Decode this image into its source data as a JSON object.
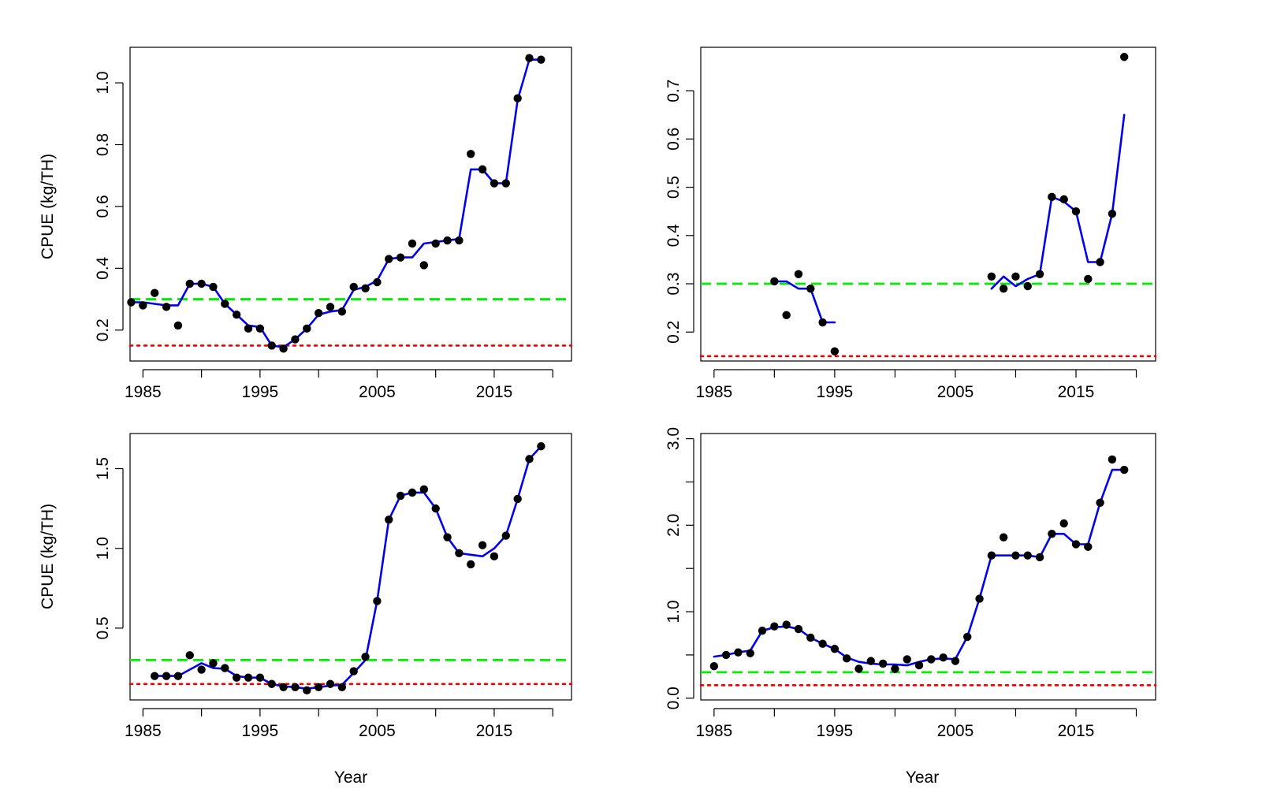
{
  "figure": {
    "ylabel_left_top": "CPUE (kg/TH)",
    "ylabel_left_bottom": "CPUE (kg/TH)",
    "xlabel_bottom_left": "Year",
    "xlabel_bottom_right": "Year"
  },
  "colors": {
    "fit_line": "#0000ee",
    "points": "#000000",
    "upper_reference": "#00ee00",
    "lower_reference": "#ee0000"
  },
  "chart_data": [
    {
      "type": "line",
      "panel": "top-left",
      "xlabel": "",
      "ylabel": "CPUE (kg/TH)",
      "xlim": [
        1983.9,
        2021.6
      ],
      "ylim": [
        0.1,
        1.115
      ],
      "x_ticks": [
        1985,
        1990,
        1995,
        2000,
        2005,
        2010,
        2015,
        2020
      ],
      "x_tick_labels": [
        "1985",
        "",
        "1995",
        "",
        "2005",
        "",
        "2015",
        ""
      ],
      "y_ticks": [
        0.2,
        0.4,
        0.6,
        0.8,
        1.0
      ],
      "y_tick_labels": [
        "0.2",
        "0.4",
        "0.6",
        "0.8",
        "1.0"
      ],
      "reference_lines": [
        {
          "y": 0.3,
          "style": "dashed",
          "color": "green"
        },
        {
          "y": 0.15,
          "style": "dotted",
          "color": "red"
        }
      ],
      "points": {
        "x": [
          1984,
          1985,
          1986,
          1987,
          1988,
          1989,
          1990,
          1991,
          1992,
          1993,
          1994,
          1995,
          1996,
          1997,
          1998,
          1999,
          2000,
          2001,
          2002,
          2003,
          2004,
          2005,
          2006,
          2007,
          2008,
          2009,
          2010,
          2011,
          2012,
          2013,
          2014,
          2015,
          2016,
          2017,
          2018,
          2019
        ],
        "y": [
          0.29,
          0.28,
          0.32,
          0.275,
          0.215,
          0.35,
          0.35,
          0.34,
          0.285,
          0.25,
          0.205,
          0.205,
          0.15,
          0.14,
          0.17,
          0.205,
          0.255,
          0.275,
          0.26,
          0.34,
          0.335,
          0.355,
          0.43,
          0.435,
          0.48,
          0.41,
          0.48,
          0.49,
          0.49,
          0.77,
          0.72,
          0.675,
          0.675,
          0.95,
          1.08,
          1.075
        ]
      },
      "fit": {
        "x": [
          1984,
          1985,
          1986,
          1987,
          1988,
          1989,
          1990,
          1991,
          1992,
          1993,
          1994,
          1995,
          1996,
          1997,
          1998,
          1999,
          2000,
          2001,
          2002,
          2003,
          2004,
          2005,
          2006,
          2007,
          2008,
          2009,
          2010,
          2011,
          2012,
          2013,
          2014,
          2015,
          2016,
          2017,
          2018,
          2019
        ],
        "y": [
          0.29,
          0.29,
          0.285,
          0.28,
          0.28,
          0.35,
          0.35,
          0.34,
          0.285,
          0.25,
          0.215,
          0.21,
          0.15,
          0.145,
          0.17,
          0.205,
          0.25,
          0.26,
          0.265,
          0.33,
          0.34,
          0.36,
          0.43,
          0.435,
          0.435,
          0.48,
          0.485,
          0.49,
          0.495,
          0.72,
          0.72,
          0.675,
          0.675,
          0.945,
          1.075,
          1.075
        ]
      }
    },
    {
      "type": "line",
      "panel": "top-right",
      "xlabel": "",
      "ylabel": "",
      "xlim": [
        1983.9,
        2021.6
      ],
      "ylim": [
        0.14,
        0.79
      ],
      "x_ticks": [
        1985,
        1990,
        1995,
        2000,
        2005,
        2010,
        2015,
        2020
      ],
      "x_tick_labels": [
        "1985",
        "",
        "1995",
        "",
        "2005",
        "",
        "2015",
        ""
      ],
      "y_ticks": [
        0.2,
        0.3,
        0.4,
        0.5,
        0.6,
        0.7
      ],
      "y_tick_labels": [
        "0.2",
        "0.3",
        "0.4",
        "0.5",
        "0.6",
        "0.7"
      ],
      "reference_lines": [
        {
          "y": 0.3,
          "style": "dashed",
          "color": "green"
        },
        {
          "y": 0.15,
          "style": "dotted",
          "color": "red"
        }
      ],
      "points": {
        "x": [
          1990,
          1991,
          1992,
          1993,
          1994,
          1995,
          2008,
          2009,
          2010,
          2011,
          2012,
          2013,
          2014,
          2015,
          2016,
          2017,
          2018,
          2019
        ],
        "y": [
          0.305,
          0.235,
          0.32,
          0.29,
          0.22,
          0.16,
          0.315,
          0.29,
          0.315,
          0.295,
          0.32,
          0.48,
          0.475,
          0.45,
          0.31,
          0.345,
          0.445,
          0.77
        ]
      },
      "fit_segments": [
        {
          "x": [
            1990,
            1991,
            1992,
            1993,
            1994,
            1995
          ],
          "y": [
            0.305,
            0.305,
            0.29,
            0.29,
            0.22,
            0.22
          ]
        },
        {
          "x": [
            2008,
            2009,
            2010,
            2011,
            2012,
            2013,
            2014,
            2015,
            2016,
            2017,
            2018,
            2019
          ],
          "y": [
            0.29,
            0.315,
            0.295,
            0.31,
            0.32,
            0.48,
            0.47,
            0.45,
            0.345,
            0.345,
            0.445,
            0.65
          ]
        }
      ]
    },
    {
      "type": "line",
      "panel": "bottom-left",
      "xlabel": "Year",
      "ylabel": "CPUE (kg/TH)",
      "xlim": [
        1983.9,
        2021.6
      ],
      "ylim": [
        0.05,
        1.72
      ],
      "x_ticks": [
        1985,
        1990,
        1995,
        2000,
        2005,
        2010,
        2015,
        2020
      ],
      "x_tick_labels": [
        "1985",
        "",
        "1995",
        "",
        "2005",
        "",
        "2015",
        ""
      ],
      "y_ticks": [
        0.5,
        1.0,
        1.5
      ],
      "y_tick_labels": [
        "0.5",
        "1.0",
        "1.5"
      ],
      "reference_lines": [
        {
          "y": 0.3,
          "style": "dashed",
          "color": "green"
        },
        {
          "y": 0.15,
          "style": "dotted",
          "color": "red"
        }
      ],
      "points": {
        "x": [
          1986,
          1987,
          1988,
          1989,
          1990,
          1991,
          1992,
          1993,
          1994,
          1995,
          1996,
          1997,
          1998,
          1999,
          2000,
          2001,
          2002,
          2003,
          2004,
          2005,
          2006,
          2007,
          2008,
          2009,
          2010,
          2011,
          2012,
          2013,
          2014,
          2015,
          2016,
          2017,
          2018,
          2019
        ],
        "y": [
          0.2,
          0.2,
          0.2,
          0.33,
          0.24,
          0.28,
          0.25,
          0.19,
          0.19,
          0.19,
          0.15,
          0.13,
          0.13,
          0.11,
          0.13,
          0.15,
          0.13,
          0.23,
          0.32,
          0.67,
          1.18,
          1.33,
          1.35,
          1.37,
          1.25,
          1.07,
          0.97,
          0.9,
          1.02,
          0.95,
          1.08,
          1.31,
          1.56,
          1.64
        ]
      },
      "fit": {
        "x": [
          1986,
          1987,
          1988,
          1989,
          1990,
          1991,
          1992,
          1993,
          1994,
          1995,
          1996,
          1997,
          1998,
          1999,
          2000,
          2001,
          2002,
          2003,
          2004,
          2005,
          2006,
          2007,
          2008,
          2009,
          2010,
          2011,
          2012,
          2013,
          2014,
          2015,
          2016,
          2017,
          2018,
          2019
        ],
        "y": [
          0.2,
          0.2,
          0.2,
          0.24,
          0.28,
          0.25,
          0.245,
          0.2,
          0.19,
          0.19,
          0.15,
          0.135,
          0.13,
          0.12,
          0.13,
          0.14,
          0.145,
          0.22,
          0.3,
          0.67,
          1.18,
          1.33,
          1.35,
          1.35,
          1.25,
          1.07,
          0.97,
          0.96,
          0.95,
          1.0,
          1.08,
          1.31,
          1.56,
          1.64
        ]
      }
    },
    {
      "type": "line",
      "panel": "bottom-right",
      "xlabel": "Year",
      "ylabel": "",
      "xlim": [
        1983.9,
        2021.6
      ],
      "ylim": [
        -0.02,
        3.06
      ],
      "x_ticks": [
        1985,
        1990,
        1995,
        2000,
        2005,
        2010,
        2015,
        2020
      ],
      "x_tick_labels": [
        "1985",
        "",
        "1995",
        "",
        "2005",
        "",
        "2015",
        ""
      ],
      "y_ticks": [
        0.0,
        1.0,
        2.0,
        3.0
      ],
      "y_tick_labels": [
        "0.0",
        "1.0",
        "2.0",
        "3.0"
      ],
      "y_minor_ticks": [
        0.5,
        1.5,
        2.5
      ],
      "reference_lines": [
        {
          "y": 0.3,
          "style": "dashed",
          "color": "green"
        },
        {
          "y": 0.15,
          "style": "dotted",
          "color": "red"
        }
      ],
      "points": {
        "x": [
          1985,
          1986,
          1987,
          1988,
          1989,
          1990,
          1991,
          1992,
          1993,
          1994,
          1995,
          1996,
          1997,
          1998,
          1999,
          2000,
          2001,
          2002,
          2003,
          2004,
          2005,
          2006,
          2007,
          2008,
          2009,
          2010,
          2011,
          2012,
          2013,
          2014,
          2015,
          2016,
          2017,
          2018,
          2019
        ],
        "y": [
          0.37,
          0.5,
          0.53,
          0.52,
          0.78,
          0.83,
          0.85,
          0.8,
          0.7,
          0.63,
          0.57,
          0.46,
          0.34,
          0.43,
          0.4,
          0.34,
          0.45,
          0.38,
          0.45,
          0.47,
          0.43,
          0.71,
          1.15,
          1.65,
          1.86,
          1.65,
          1.65,
          1.63,
          1.9,
          2.02,
          1.78,
          1.75,
          2.26,
          2.76,
          2.64
        ]
      },
      "fit": {
        "x": [
          1985,
          1986,
          1987,
          1988,
          1989,
          1990,
          1991,
          1992,
          1993,
          1994,
          1995,
          1996,
          1997,
          1998,
          1999,
          2000,
          2001,
          2002,
          2003,
          2004,
          2005,
          2006,
          2007,
          2008,
          2009,
          2010,
          2011,
          2012,
          2013,
          2014,
          2015,
          2016,
          2017,
          2018,
          2019
        ],
        "y": [
          0.48,
          0.5,
          0.53,
          0.55,
          0.78,
          0.82,
          0.83,
          0.8,
          0.7,
          0.63,
          0.57,
          0.47,
          0.42,
          0.4,
          0.39,
          0.39,
          0.38,
          0.42,
          0.45,
          0.46,
          0.45,
          0.71,
          1.15,
          1.65,
          1.65,
          1.65,
          1.65,
          1.63,
          1.9,
          1.9,
          1.78,
          1.78,
          2.26,
          2.64,
          2.64
        ]
      }
    }
  ]
}
